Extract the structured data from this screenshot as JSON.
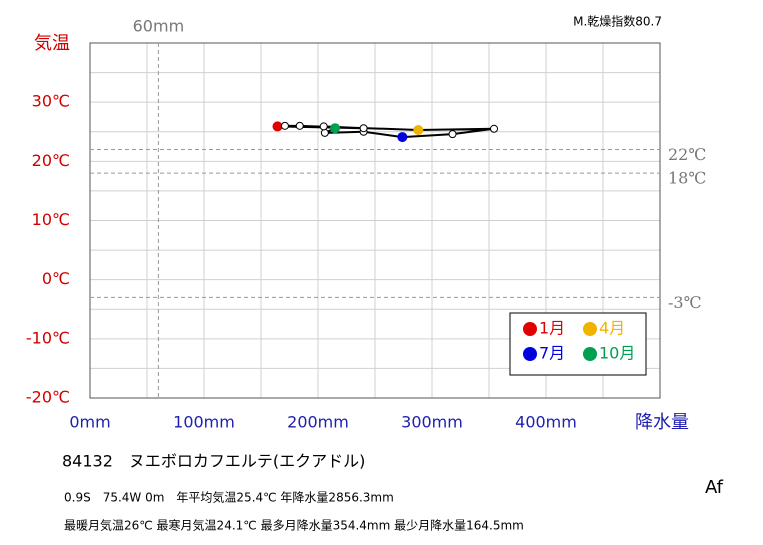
{
  "chart_data": {
    "type": "climograph",
    "index_label": "M.乾燥指数80.7",
    "ylabel": "気温",
    "xlabel": "降水量",
    "xlim": [
      0,
      500
    ],
    "ylim": [
      -20,
      40
    ],
    "xticks": [
      {
        "value": 0,
        "label": "0mm"
      },
      {
        "value": 100,
        "label": "100mm"
      },
      {
        "value": 200,
        "label": "200mm"
      },
      {
        "value": 300,
        "label": "300mm"
      },
      {
        "value": 400,
        "label": "400mm"
      }
    ],
    "yticks": [
      {
        "value": 30,
        "label": "30℃"
      },
      {
        "value": 20,
        "label": "20℃"
      },
      {
        "value": 10,
        "label": "10℃"
      },
      {
        "value": 0,
        "label": "0℃"
      },
      {
        "value": -10,
        "label": "-10℃"
      },
      {
        "value": -20,
        "label": "-20℃"
      }
    ],
    "xgrid": [
      50,
      100,
      150,
      200,
      250,
      300,
      350,
      400,
      450
    ],
    "ygrid": [
      35,
      30,
      25,
      20,
      15,
      10,
      5,
      0,
      -5,
      -10,
      -15
    ],
    "hlines": [
      {
        "value": 22,
        "label": "22℃"
      },
      {
        "value": 18,
        "label": "18℃"
      },
      {
        "value": -3,
        "label": "-3℃"
      }
    ],
    "vlines": [
      {
        "value": 60,
        "label": "60mm"
      }
    ],
    "x": [
      164.5,
      171,
      184,
      288,
      354.4,
      318,
      274,
      240,
      206,
      215,
      205,
      240
    ],
    "values": [
      25.9,
      26,
      26,
      25.3,
      25.5,
      24.6,
      24.1,
      25,
      24.8,
      25.6,
      25.9,
      25.6
    ],
    "point_colors": [
      "#e00000",
      "#ffffff",
      "#ffffff",
      "#f0b400",
      "#ffffff",
      "#ffffff",
      "#0000e0",
      "#ffffff",
      "#ffffff",
      "#00a050",
      "#ffffff",
      "#ffffff"
    ],
    "line_color": "#000000",
    "legend": [
      {
        "name": "1月",
        "color": "#e00000"
      },
      {
        "name": "4月",
        "color": "#f0b400"
      },
      {
        "name": "7月",
        "color": "#0000e0"
      },
      {
        "name": "10月",
        "color": "#00a050"
      }
    ],
    "station": "84132　ヌエボロカフエルテ(エクアドル)",
    "info": [
      "0.9S　75.4W 0m　年平均気温25.4℃ 年降水量2856.3mm",
      "最暖月気温26℃ 最寒月気温24.1℃ 最多月降水量354.4mm 最少月降水量164.5mm"
    ],
    "climate": "Af"
  }
}
